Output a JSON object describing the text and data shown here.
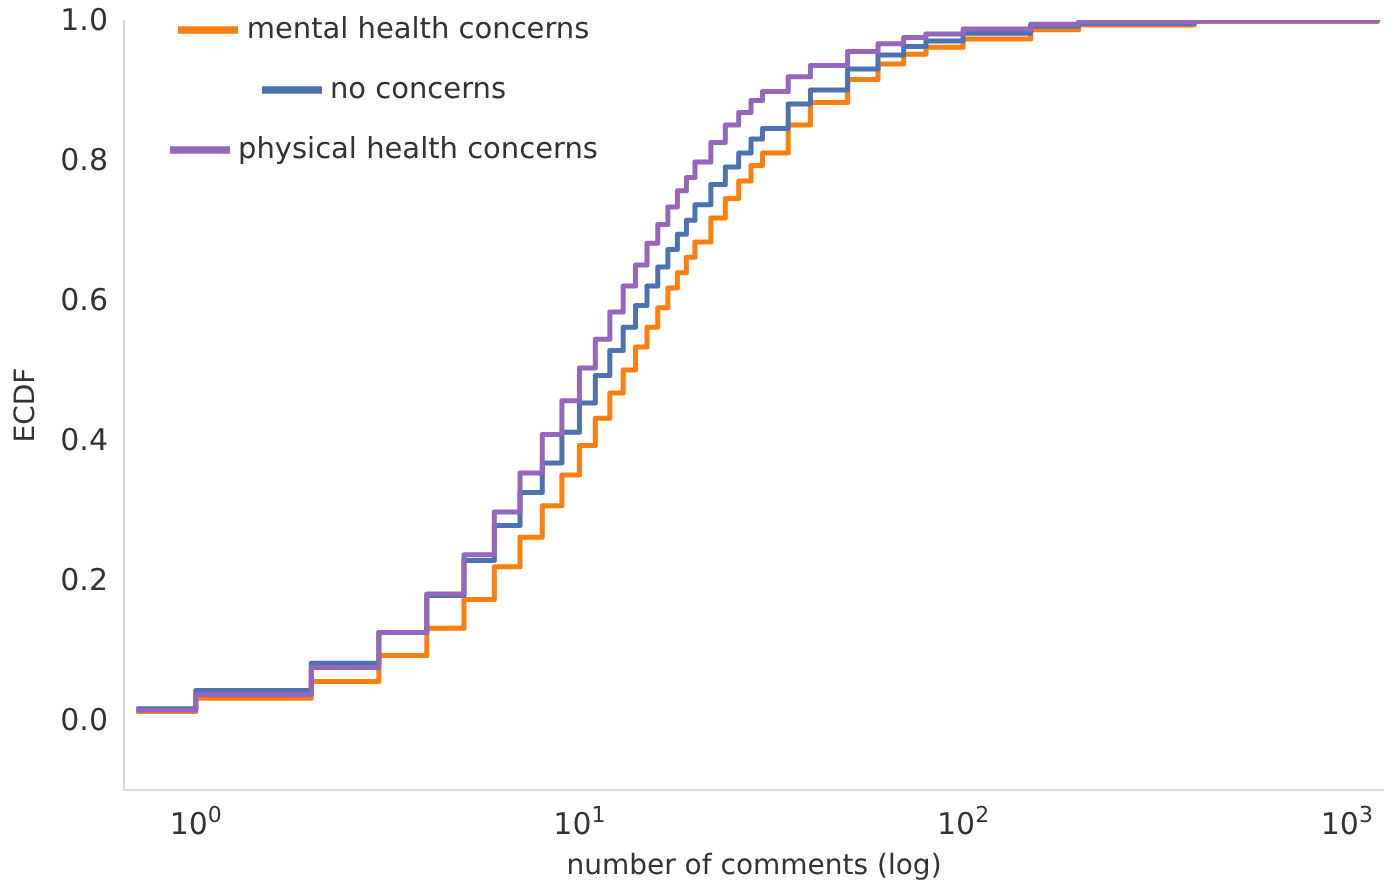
{
  "chart_data": {
    "type": "step",
    "xlabel": "number of comments (log)",
    "ylabel": "ECDF",
    "log": "x",
    "x": [
      0.7,
      1,
      2,
      3,
      4,
      5,
      6,
      7,
      8,
      9,
      10,
      11,
      12,
      13,
      14,
      15,
      16,
      17,
      18,
      19,
      20,
      22,
      24,
      26,
      28,
      30,
      35,
      40,
      50,
      60,
      70,
      80,
      100,
      150,
      200,
      400,
      1200
    ],
    "series": [
      {
        "name": "mental health concerns",
        "color": "#ff7f0e",
        "values": [
          0.012,
          0.031,
          0.055,
          0.092,
          0.131,
          0.172,
          0.219,
          0.261,
          0.306,
          0.35,
          0.392,
          0.431,
          0.467,
          0.5,
          0.533,
          0.561,
          0.589,
          0.617,
          0.639,
          0.661,
          0.683,
          0.717,
          0.745,
          0.77,
          0.792,
          0.81,
          0.85,
          0.882,
          0.915,
          0.937,
          0.951,
          0.961,
          0.973,
          0.986,
          0.993,
          0.998,
          1.0
        ]
      },
      {
        "name": "no concerns",
        "color": "#4c72b0",
        "values": [
          0.016,
          0.042,
          0.081,
          0.125,
          0.178,
          0.228,
          0.278,
          0.325,
          0.367,
          0.411,
          0.453,
          0.492,
          0.528,
          0.561,
          0.592,
          0.62,
          0.647,
          0.672,
          0.694,
          0.714,
          0.736,
          0.765,
          0.79,
          0.81,
          0.83,
          0.845,
          0.88,
          0.9,
          0.93,
          0.95,
          0.962,
          0.97,
          0.981,
          0.991,
          0.995,
          0.999,
          1.0
        ]
      },
      {
        "name": "physical health concerns",
        "color": "#9467bd",
        "values": [
          0.014,
          0.036,
          0.075,
          0.125,
          0.18,
          0.236,
          0.297,
          0.353,
          0.408,
          0.456,
          0.503,
          0.544,
          0.583,
          0.62,
          0.65,
          0.681,
          0.708,
          0.733,
          0.756,
          0.775,
          0.797,
          0.825,
          0.85,
          0.868,
          0.885,
          0.898,
          0.919,
          0.935,
          0.955,
          0.966,
          0.975,
          0.98,
          0.987,
          0.994,
          0.997,
          0.999,
          1.0
        ]
      }
    ],
    "xlim": [
      0.65,
      1250
    ],
    "xticks": [
      {
        "value": 1,
        "label": "10$^{0}$"
      },
      {
        "value": 10,
        "label": "10$^{1}$"
      },
      {
        "value": 100,
        "label": "10$^{2}$"
      },
      {
        "value": 1000,
        "label": "10$^{3}$"
      }
    ],
    "ylim": [
      -0.1,
      1.0
    ],
    "yticks": [
      {
        "value": 0,
        "label": "0.0"
      },
      {
        "value": 0.2,
        "label": "0.2"
      },
      {
        "value": 0.4,
        "label": "0.4"
      },
      {
        "value": 0.6,
        "label": "0.6"
      },
      {
        "value": 0.8,
        "label": "0.8"
      },
      {
        "value": 1.0,
        "label": "1.0"
      }
    ],
    "grid": false,
    "legend": "top left",
    "marker": "none",
    "line_style": "solid"
  }
}
